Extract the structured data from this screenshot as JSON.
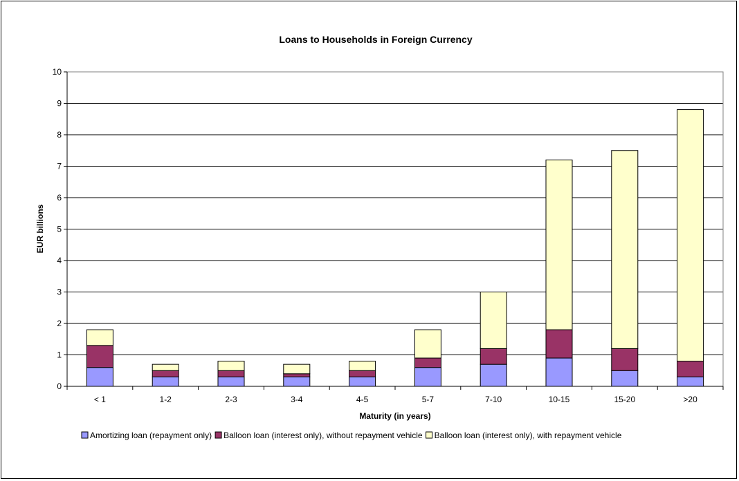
{
  "chart_data": {
    "type": "bar",
    "stacked": true,
    "title": "Loans to Households in Foreign Currency",
    "xlabel": "Maturity (in years)",
    "ylabel": "EUR billions",
    "ylim": [
      0,
      10
    ],
    "yticks": [
      0,
      1,
      2,
      3,
      4,
      5,
      6,
      7,
      8,
      9,
      10
    ],
    "grid": true,
    "legend_position": "bottom",
    "categories": [
      "< 1",
      "1-2",
      "2-3",
      "3-4",
      "4-5",
      "5-7",
      "7-10",
      "10-15",
      "15-20",
      ">20"
    ],
    "series": [
      {
        "name": "Amortizing loan (repayment only)",
        "color": "#9999ff",
        "values": [
          0.6,
          0.3,
          0.3,
          0.3,
          0.3,
          0.6,
          0.7,
          0.9,
          0.5,
          0.3
        ]
      },
      {
        "name": "Balloon loan (interest only), without repayment vehicle",
        "color": "#993366",
        "values": [
          0.7,
          0.2,
          0.2,
          0.1,
          0.2,
          0.3,
          0.5,
          0.9,
          0.7,
          0.5
        ]
      },
      {
        "name": "Balloon loan (interest only), with repayment vehicle",
        "color": "#ffffcc",
        "values": [
          0.5,
          0.2,
          0.3,
          0.3,
          0.3,
          0.9,
          1.8,
          5.4,
          6.3,
          8.0
        ]
      }
    ]
  }
}
